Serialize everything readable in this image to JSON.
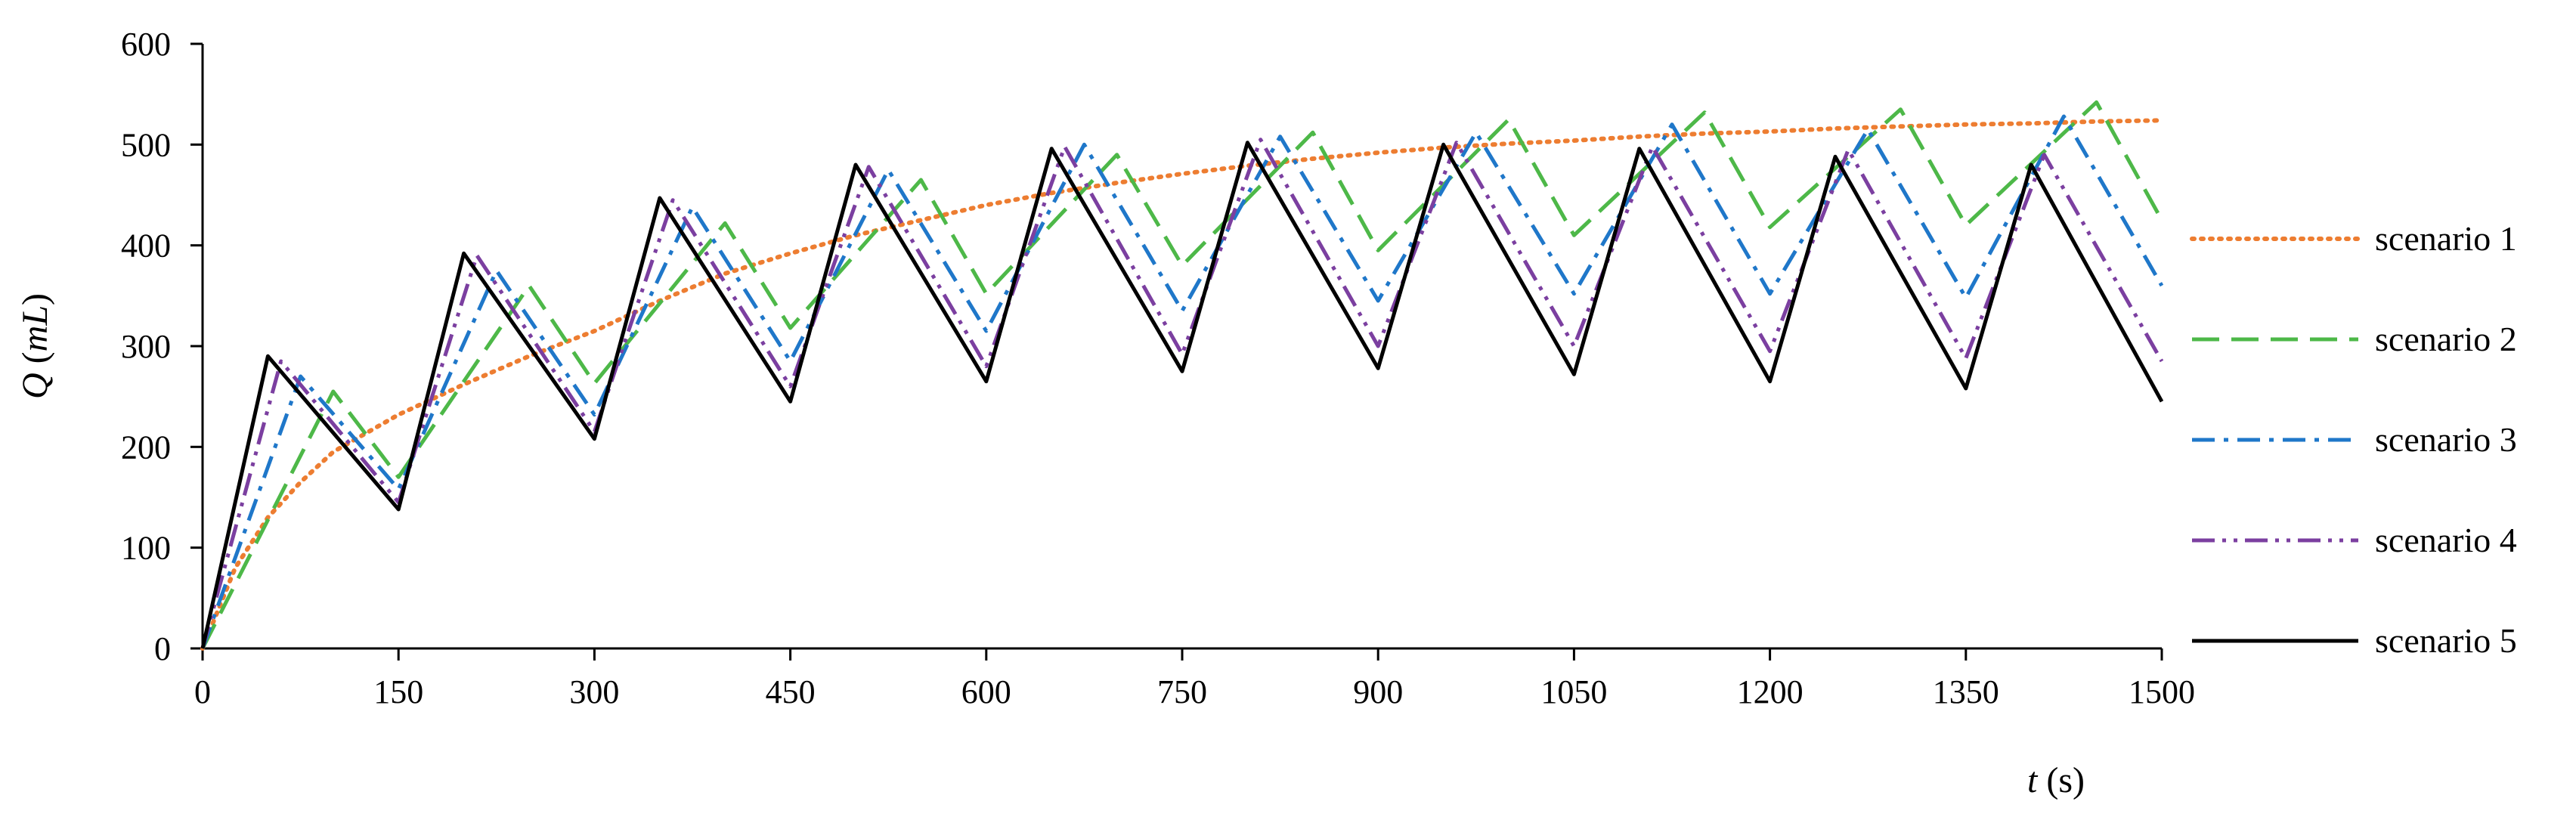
{
  "chart_data": {
    "type": "line",
    "title": "",
    "xlabel": {
      "var": "t",
      "unit": "(s)"
    },
    "ylabel": {
      "var": "Q",
      "unit": "mL"
    },
    "xlim": [
      0,
      1500
    ],
    "ylim": [
      0,
      600
    ],
    "xticks": [
      0,
      150,
      300,
      450,
      600,
      750,
      900,
      1050,
      1200,
      1350,
      1500
    ],
    "yticks": [
      0,
      100,
      200,
      300,
      400,
      500,
      600
    ],
    "grid": false,
    "legend_position": "right",
    "series": [
      {
        "name": "scenario 1",
        "color": "#ED7D31",
        "style": "dotted",
        "points": [
          [
            0,
            0
          ],
          [
            25,
            80
          ],
          [
            50,
            130
          ],
          [
            75,
            165
          ],
          [
            100,
            195
          ],
          [
            150,
            232
          ],
          [
            200,
            262
          ],
          [
            250,
            290
          ],
          [
            300,
            315
          ],
          [
            350,
            345
          ],
          [
            400,
            372
          ],
          [
            450,
            392
          ],
          [
            500,
            410
          ],
          [
            550,
            425
          ],
          [
            600,
            440
          ],
          [
            650,
            452
          ],
          [
            700,
            462
          ],
          [
            750,
            471
          ],
          [
            800,
            479
          ],
          [
            850,
            486
          ],
          [
            900,
            492
          ],
          [
            950,
            497
          ],
          [
            1000,
            501
          ],
          [
            1050,
            504
          ],
          [
            1100,
            508
          ],
          [
            1150,
            511
          ],
          [
            1200,
            513
          ],
          [
            1250,
            516
          ],
          [
            1300,
            518
          ],
          [
            1350,
            520
          ],
          [
            1400,
            521
          ],
          [
            1450,
            523
          ],
          [
            1500,
            524
          ]
        ]
      },
      {
        "name": "scenario 2",
        "color": "#4DB848",
        "style": "dashed",
        "points": [
          [
            0,
            0
          ],
          [
            100,
            255
          ],
          [
            150,
            170
          ],
          [
            250,
            360
          ],
          [
            300,
            263
          ],
          [
            400,
            422
          ],
          [
            450,
            318
          ],
          [
            550,
            465
          ],
          [
            600,
            352
          ],
          [
            700,
            490
          ],
          [
            750,
            380
          ],
          [
            850,
            512
          ],
          [
            900,
            395
          ],
          [
            1000,
            525
          ],
          [
            1050,
            410
          ],
          [
            1150,
            532
          ],
          [
            1200,
            418
          ],
          [
            1300,
            535
          ],
          [
            1350,
            420
          ],
          [
            1450,
            542
          ],
          [
            1500,
            425
          ]
        ]
      },
      {
        "name": "scenario 3",
        "color": "#1F77C9",
        "style": "dash-dot",
        "points": [
          [
            0,
            0
          ],
          [
            75,
            270
          ],
          [
            150,
            158
          ],
          [
            225,
            375
          ],
          [
            300,
            232
          ],
          [
            375,
            438
          ],
          [
            450,
            285
          ],
          [
            525,
            475
          ],
          [
            600,
            315
          ],
          [
            675,
            500
          ],
          [
            750,
            335
          ],
          [
            825,
            508
          ],
          [
            900,
            345
          ],
          [
            975,
            512
          ],
          [
            1050,
            352
          ],
          [
            1125,
            520
          ],
          [
            1200,
            352
          ],
          [
            1275,
            515
          ],
          [
            1350,
            348
          ],
          [
            1425,
            528
          ],
          [
            1500,
            360
          ]
        ]
      },
      {
        "name": "scenario 4",
        "color": "#7B3FA0",
        "style": "dash-dot-dot",
        "points": [
          [
            0,
            0
          ],
          [
            60,
            285
          ],
          [
            150,
            145
          ],
          [
            210,
            390
          ],
          [
            300,
            215
          ],
          [
            360,
            445
          ],
          [
            450,
            260
          ],
          [
            510,
            478
          ],
          [
            600,
            280
          ],
          [
            660,
            498
          ],
          [
            750,
            292
          ],
          [
            810,
            505
          ],
          [
            900,
            300
          ],
          [
            960,
            502
          ],
          [
            1050,
            300
          ],
          [
            1110,
            498
          ],
          [
            1200,
            295
          ],
          [
            1260,
            495
          ],
          [
            1350,
            288
          ],
          [
            1410,
            490
          ],
          [
            1500,
            285
          ]
        ]
      },
      {
        "name": "scenario 5",
        "color": "#000000",
        "style": "solid",
        "points": [
          [
            0,
            0
          ],
          [
            50,
            290
          ],
          [
            150,
            138
          ],
          [
            200,
            392
          ],
          [
            300,
            208
          ],
          [
            350,
            447
          ],
          [
            450,
            245
          ],
          [
            500,
            480
          ],
          [
            600,
            265
          ],
          [
            650,
            496
          ],
          [
            750,
            275
          ],
          [
            800,
            502
          ],
          [
            900,
            278
          ],
          [
            950,
            500
          ],
          [
            1050,
            272
          ],
          [
            1100,
            496
          ],
          [
            1200,
            265
          ],
          [
            1250,
            488
          ],
          [
            1350,
            258
          ],
          [
            1400,
            480
          ],
          [
            1500,
            245
          ]
        ]
      }
    ]
  }
}
